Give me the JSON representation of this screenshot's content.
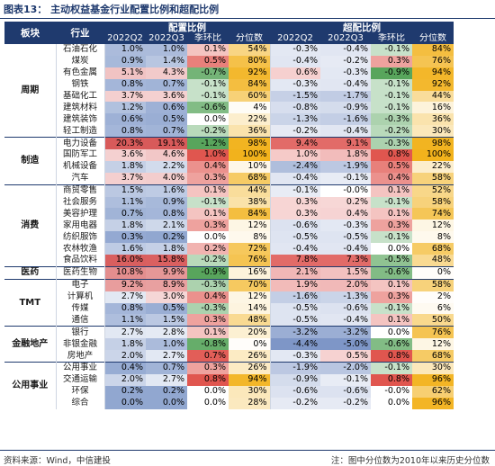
{
  "title": "图表13： 主动权益基金行业配置比例和超配比例",
  "header": {
    "sector": "板块",
    "industry": "行业",
    "alloc_group": "配置比例",
    "over_group": "超配比例",
    "cols": [
      "2022Q2",
      "2022Q3",
      "季环比",
      "分位数",
      "2022Q2",
      "2022Q3",
      "季环比",
      "分位数"
    ]
  },
  "colors": {
    "header_bg": "#1f3a6e",
    "alloc_high": "#d85a5a",
    "alloc_low": "#7d97c8",
    "qoq_pos": "#e0564f",
    "qoq_neg": "#58a55c",
    "pct_high": "#f2b21c",
    "over_pos": "#e26b68",
    "over_neg": "#7790c4"
  },
  "groups": [
    {
      "name": "周期",
      "start": 0,
      "span": 8
    },
    {
      "name": "制造",
      "start": 8,
      "span": 4
    },
    {
      "name": "消费",
      "start": 12,
      "span": 7
    },
    {
      "name": "医药",
      "start": 19,
      "span": 1
    },
    {
      "name": "TMT",
      "start": 20,
      "span": 4
    },
    {
      "name": "金融地产",
      "start": 24,
      "span": 3
    },
    {
      "name": "公用事业",
      "start": 27,
      "span": 4
    }
  ],
  "rows": [
    {
      "industry": "石油石化",
      "a2": "1.0%",
      "a3": "1.0%",
      "ac": "0.1%",
      "ap": "54%",
      "o2": "-0.3%",
      "o3": "-0.4%",
      "oc": "-0.1%",
      "op": "84%"
    },
    {
      "industry": "煤炭",
      "a2": "0.9%",
      "a3": "1.4%",
      "ac": "0.5%",
      "ap": "80%",
      "o2": "-0.4%",
      "o3": "-0.2%",
      "oc": "0.3%",
      "op": "76%"
    },
    {
      "industry": "有色金属",
      "a2": "5.1%",
      "a3": "4.3%",
      "ac": "-0.7%",
      "ap": "92%",
      "o2": "0.6%",
      "o3": "-0.3%",
      "oc": "-0.9%",
      "op": "94%"
    },
    {
      "industry": "钢铁",
      "a2": "0.8%",
      "a3": "0.7%",
      "ac": "-0.1%",
      "ap": "84%",
      "o2": "-0.3%",
      "o3": "-0.4%",
      "oc": "-0.1%",
      "op": "92%"
    },
    {
      "industry": "基础化工",
      "a2": "3.7%",
      "a3": "3.6%",
      "ac": "-0.1%",
      "ap": "60%",
      "o2": "-1.5%",
      "o3": "-1.7%",
      "oc": "-0.1%",
      "op": "44%"
    },
    {
      "industry": "建筑材料",
      "a2": "1.2%",
      "a3": "0.6%",
      "ac": "-0.6%",
      "ap": "4%",
      "o2": "-0.8%",
      "o3": "-0.9%",
      "oc": "-0.1%",
      "op": "16%"
    },
    {
      "industry": "建筑装饰",
      "a2": "0.6%",
      "a3": "0.5%",
      "ac": "0.0%",
      "ap": "22%",
      "o2": "-1.3%",
      "o3": "-1.6%",
      "oc": "-0.3%",
      "op": "36%"
    },
    {
      "industry": "轻工制造",
      "a2": "0.8%",
      "a3": "0.7%",
      "ac": "-0.2%",
      "ap": "36%",
      "o2": "-0.2%",
      "o3": "-0.4%",
      "oc": "-0.2%",
      "op": "30%"
    },
    {
      "industry": "电力设备",
      "a2": "20.3%",
      "a3": "19.1%",
      "ac": "-1.2%",
      "ap": "98%",
      "o2": "9.4%",
      "o3": "9.1%",
      "oc": "-0.3%",
      "op": "98%"
    },
    {
      "industry": "国防军工",
      "a2": "3.6%",
      "a3": "4.6%",
      "ac": "1.0%",
      "ap": "100%",
      "o2": "1.0%",
      "o3": "1.8%",
      "oc": "0.8%",
      "op": "100%"
    },
    {
      "industry": "机械设备",
      "a2": "1.8%",
      "a3": "2.2%",
      "ac": "0.4%",
      "ap": "10%",
      "o2": "-2.4%",
      "o3": "-1.9%",
      "oc": "0.5%",
      "op": "22%"
    },
    {
      "industry": "汽车",
      "a2": "3.7%",
      "a3": "4.0%",
      "ac": "0.3%",
      "ap": "68%",
      "o2": "-0.4%",
      "o3": "-0.1%",
      "oc": "0.4%",
      "op": "58%"
    },
    {
      "industry": "商贸零售",
      "a2": "1.5%",
      "a3": "1.6%",
      "ac": "0.1%",
      "ap": "44%",
      "o2": "-0.1%",
      "o3": "-0.0%",
      "oc": "0.1%",
      "op": "52%"
    },
    {
      "industry": "社会服务",
      "a2": "1.1%",
      "a3": "0.9%",
      "ac": "-0.1%",
      "ap": "38%",
      "o2": "0.3%",
      "o3": "0.2%",
      "oc": "-0.1%",
      "op": "58%"
    },
    {
      "industry": "美容护理",
      "a2": "0.7%",
      "a3": "0.8%",
      "ac": "0.1%",
      "ap": "84%",
      "o2": "0.3%",
      "o3": "0.4%",
      "oc": "0.1%",
      "op": "74%"
    },
    {
      "industry": "家用电器",
      "a2": "1.8%",
      "a3": "2.1%",
      "ac": "0.3%",
      "ap": "12%",
      "o2": "-0.6%",
      "o3": "-0.3%",
      "oc": "0.3%",
      "op": "12%"
    },
    {
      "industry": "纺织服饰",
      "a2": "0.3%",
      "a3": "0.2%",
      "ac": "0.0%",
      "ap": "8%",
      "o2": "-0.5%",
      "o3": "-0.5%",
      "oc": "-0.1%",
      "op": "8%"
    },
    {
      "industry": "农林牧渔",
      "a2": "1.6%",
      "a3": "1.8%",
      "ac": "0.2%",
      "ap": "72%",
      "o2": "-0.4%",
      "o3": "-0.4%",
      "oc": "0.0%",
      "op": "68%"
    },
    {
      "industry": "食品饮料",
      "a2": "16.0%",
      "a3": "15.8%",
      "ac": "-0.2%",
      "ap": "76%",
      "o2": "7.8%",
      "o3": "7.3%",
      "oc": "-0.5%",
      "op": "48%"
    },
    {
      "industry": "医药生物",
      "a2": "10.8%",
      "a3": "9.9%",
      "ac": "-0.9%",
      "ap": "16%",
      "o2": "2.1%",
      "o3": "1.5%",
      "oc": "-0.6%",
      "op": "0%"
    },
    {
      "industry": "电子",
      "a2": "9.2%",
      "a3": "8.9%",
      "ac": "-0.3%",
      "ap": "70%",
      "o2": "1.9%",
      "o3": "2.0%",
      "oc": "0.1%",
      "op": "58%"
    },
    {
      "industry": "计算机",
      "a2": "2.7%",
      "a3": "3.0%",
      "ac": "0.4%",
      "ap": "12%",
      "o2": "-1.6%",
      "o3": "-1.3%",
      "oc": "0.3%",
      "op": "2%"
    },
    {
      "industry": "传媒",
      "a2": "0.8%",
      "a3": "0.5%",
      "ac": "-0.3%",
      "ap": "14%",
      "o2": "-0.5%",
      "o3": "-0.6%",
      "oc": "-0.1%",
      "op": "6%"
    },
    {
      "industry": "通信",
      "a2": "1.1%",
      "a3": "1.5%",
      "ac": "0.3%",
      "ap": "48%",
      "o2": "-0.5%",
      "o3": "-0.4%",
      "oc": "0.1%",
      "op": "50%"
    },
    {
      "industry": "银行",
      "a2": "2.7%",
      "a3": "2.8%",
      "ac": "0.1%",
      "ap": "20%",
      "o2": "-3.2%",
      "o3": "-3.2%",
      "oc": "0.0%",
      "op": "76%"
    },
    {
      "industry": "非银金融",
      "a2": "1.8%",
      "a3": "1.0%",
      "ac": "-0.8%",
      "ap": "0%",
      "o2": "-4.4%",
      "o3": "-5.0%",
      "oc": "-0.6%",
      "op": "12%"
    },
    {
      "industry": "房地产",
      "a2": "2.0%",
      "a3": "2.7%",
      "ac": "0.7%",
      "ap": "26%",
      "o2": "-0.3%",
      "o3": "0.5%",
      "oc": "0.8%",
      "op": "68%"
    },
    {
      "industry": "公用事业",
      "a2": "0.4%",
      "a3": "0.7%",
      "ac": "0.3%",
      "ap": "26%",
      "o2": "-1.9%",
      "o3": "-2.0%",
      "oc": "-0.1%",
      "op": "30%"
    },
    {
      "industry": "交通运输",
      "a2": "2.0%",
      "a3": "2.7%",
      "ac": "0.8%",
      "ap": "94%",
      "o2": "-0.9%",
      "o3": "-0.1%",
      "oc": "0.8%",
      "op": "96%"
    },
    {
      "industry": "环保",
      "a2": "0.2%",
      "a3": "0.2%",
      "ac": "0.0%",
      "ap": "30%",
      "o2": "-0.6%",
      "o3": "-0.6%",
      "oc": "-0.0%",
      "op": "62%"
    },
    {
      "industry": "综合",
      "a2": "0.0%",
      "a3": "0.0%",
      "ac": "0.0%",
      "ap": "28%",
      "o2": "-0.2%",
      "o3": "-0.2%",
      "oc": "0.0%",
      "op": "96%"
    }
  ],
  "footer": {
    "source": "资料来源：Wind，中信建投",
    "note": "注：图中分位数为2010年以来历史分位数"
  }
}
